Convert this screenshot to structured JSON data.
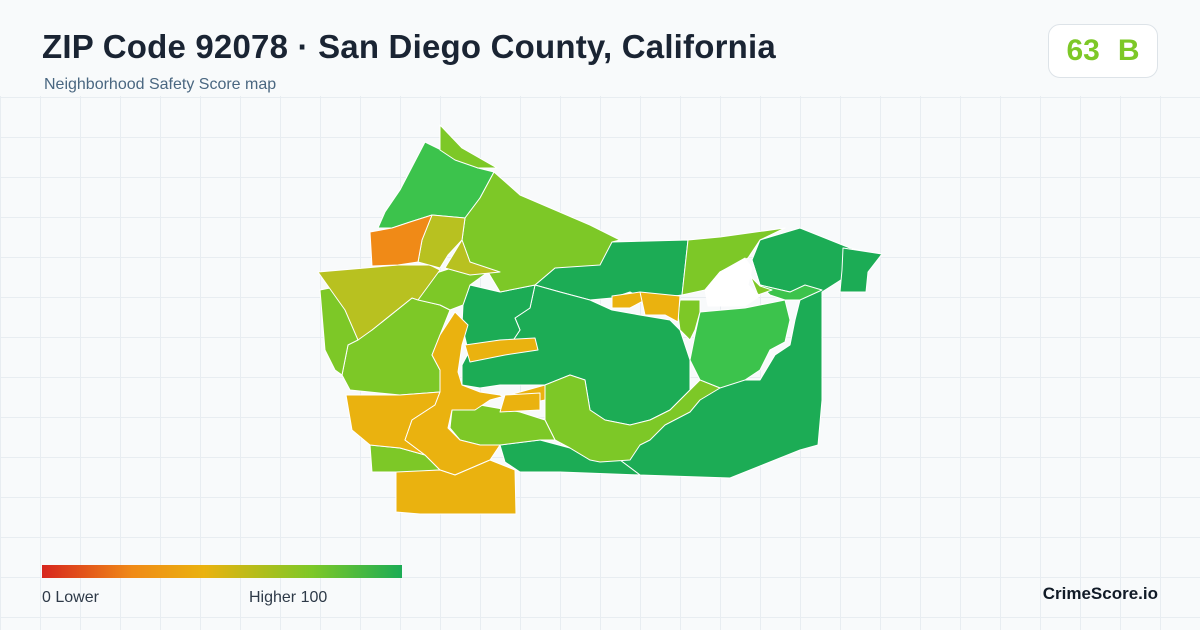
{
  "header": {
    "title": "ZIP Code 92078 · San Diego County, California",
    "subtitle": "Neighborhood Safety Score map"
  },
  "score": {
    "value": "63",
    "grade": "B",
    "color": "#7dc827"
  },
  "legend": {
    "low_label": "0  Lower",
    "high_label": "Higher  100",
    "gradient": [
      "#d7261e",
      "#f08a17",
      "#eab20f",
      "#7dc827",
      "#1cac55"
    ]
  },
  "brand": "CrimeScore.io",
  "map": {
    "colors": {
      "dark_green": "#1cac55",
      "green": "#3cc34c",
      "yellow_green": "#7dc827",
      "olive": "#b8c120",
      "amber": "#eab20f",
      "orange": "#f08a17"
    }
  }
}
